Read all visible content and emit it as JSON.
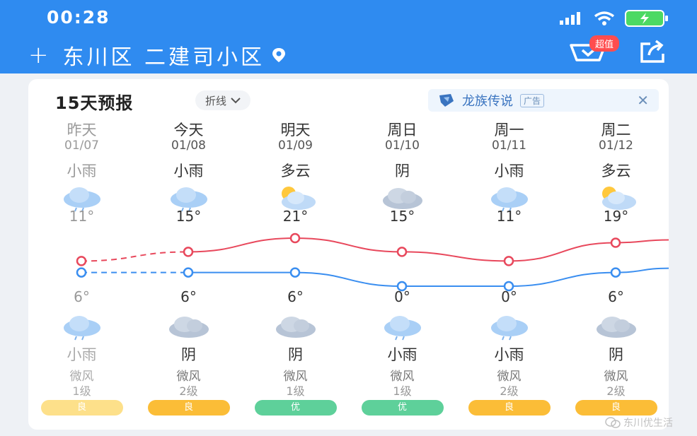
{
  "status": {
    "time": "00:28"
  },
  "header": {
    "location": "东川区 二建司小区",
    "badge": "超值"
  },
  "card": {
    "title": "15天预报",
    "mode": "折线",
    "ad_text": "龙族传说",
    "ad_tag": "广告",
    "ad_close": "✕"
  },
  "forecast": [
    {
      "day": "昨天",
      "date": "01/07",
      "day_weather": "小雨",
      "high": "11°",
      "low": "6°",
      "night_weather": "小雨",
      "wind": "微风",
      "wind_level": "1级",
      "aqi": "良",
      "aqi_color": "#fde08a",
      "day_icon": "rain-icon",
      "night_icon": "rain-icon"
    },
    {
      "day": "今天",
      "date": "01/08",
      "day_weather": "小雨",
      "high": "15°",
      "low": "6°",
      "night_weather": "阴",
      "wind": "微风",
      "wind_level": "2级",
      "aqi": "良",
      "aqi_color": "#fbbd37",
      "day_icon": "rain-icon",
      "night_icon": "overcast-icon"
    },
    {
      "day": "明天",
      "date": "01/09",
      "day_weather": "多云",
      "high": "21°",
      "low": "6°",
      "night_weather": "阴",
      "wind": "微风",
      "wind_level": "1级",
      "aqi": "优",
      "aqi_color": "#5ed09a",
      "day_icon": "partly-cloudy-icon",
      "night_icon": "overcast-icon"
    },
    {
      "day": "周日",
      "date": "01/10",
      "day_weather": "阴",
      "high": "15°",
      "low": "0°",
      "night_weather": "小雨",
      "wind": "微风",
      "wind_level": "1级",
      "aqi": "优",
      "aqi_color": "#5ed09a",
      "day_icon": "overcast-icon",
      "night_icon": "rain-icon"
    },
    {
      "day": "周一",
      "date": "01/11",
      "day_weather": "小雨",
      "high": "11°",
      "low": "0°",
      "night_weather": "小雨",
      "wind": "微风",
      "wind_level": "2级",
      "aqi": "良",
      "aqi_color": "#fbbd37",
      "day_icon": "rain-icon",
      "night_icon": "rain-icon"
    },
    {
      "day": "周二",
      "date": "01/12",
      "day_weather": "多云",
      "high": "19°",
      "low": "6°",
      "night_weather": "阴",
      "wind": "微风",
      "wind_level": "2级",
      "aqi": "良",
      "aqi_color": "#fbbd37",
      "day_icon": "partly-cloudy-icon",
      "night_icon": "overcast-icon"
    }
  ],
  "chart_data": {
    "type": "line",
    "categories": [
      "01/07",
      "01/08",
      "01/09",
      "01/10",
      "01/11",
      "01/12"
    ],
    "series": [
      {
        "values": [
          11,
          15,
          21,
          15,
          11,
          19
        ],
        "color": "#e8485c"
      },
      {
        "values": [
          6,
          6,
          6,
          0,
          0,
          6
        ],
        "color": "#3a8ef0"
      }
    ],
    "dashed_segments_until_index": 1
  },
  "watermark": "东川优生活"
}
